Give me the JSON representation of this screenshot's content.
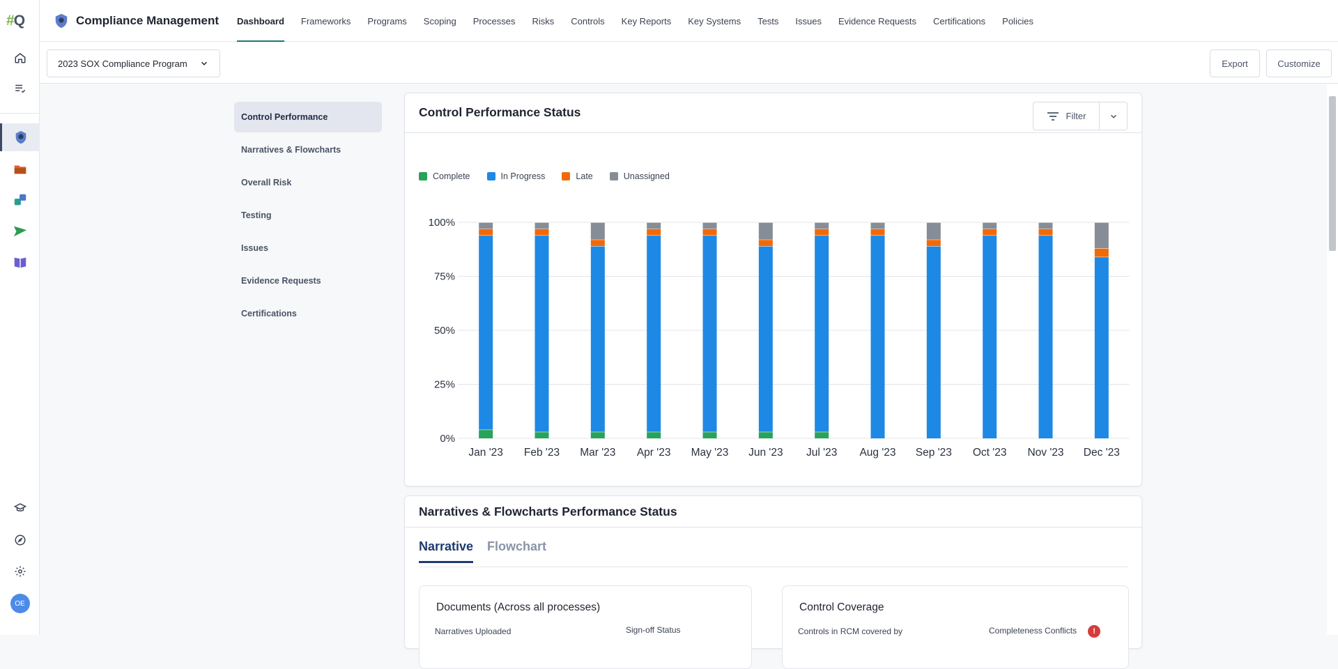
{
  "app": {
    "logo_hash": "#",
    "logo_q": "Q",
    "title": "Compliance Management",
    "avatar_initials": "OE"
  },
  "nav": [
    {
      "label": "Dashboard",
      "active": true
    },
    {
      "label": "Frameworks"
    },
    {
      "label": "Programs"
    },
    {
      "label": "Scoping"
    },
    {
      "label": "Processes"
    },
    {
      "label": "Risks"
    },
    {
      "label": "Controls"
    },
    {
      "label": "Key Reports"
    },
    {
      "label": "Key Systems"
    },
    {
      "label": "Tests"
    },
    {
      "label": "Issues"
    },
    {
      "label": "Evidence Requests"
    },
    {
      "label": "Certifications"
    },
    {
      "label": "Policies"
    }
  ],
  "toolbar": {
    "program": "2023 SOX Compliance Program",
    "export_label": "Export",
    "customize_label": "Customize"
  },
  "sidenav": [
    {
      "label": "Control Performance",
      "active": true
    },
    {
      "label": "Narratives & Flowcharts"
    },
    {
      "label": "Overall Risk"
    },
    {
      "label": "Testing"
    },
    {
      "label": "Issues"
    },
    {
      "label": "Evidence Requests"
    },
    {
      "label": "Certifications"
    }
  ],
  "control_card": {
    "title": "Control Performance Status",
    "filter_label": "Filter"
  },
  "chart_data": {
    "type": "bar",
    "stacked": true,
    "categories": [
      "Jan '23",
      "Feb '23",
      "Mar '23",
      "Apr '23",
      "May '23",
      "Jun '23",
      "Jul '23",
      "Aug '23",
      "Sep '23",
      "Oct '23",
      "Nov '23",
      "Dec '23"
    ],
    "series": [
      {
        "name": "Complete",
        "color": "#27a35a",
        "values": [
          4,
          3,
          3,
          3,
          3,
          3,
          3,
          0,
          0,
          0,
          0,
          0
        ]
      },
      {
        "name": "In Progress",
        "color": "#1e88e5",
        "values": [
          90,
          91,
          86,
          91,
          91,
          86,
          91,
          94,
          89,
          94,
          94,
          84
        ]
      },
      {
        "name": "Late",
        "color": "#f06a0a",
        "values": [
          3,
          3,
          3,
          3,
          3,
          3,
          3,
          3,
          3,
          3,
          3,
          4
        ]
      },
      {
        "name": "Unassigned",
        "color": "#878d96",
        "values": [
          3,
          3,
          8,
          3,
          3,
          8,
          3,
          3,
          8,
          3,
          3,
          12
        ]
      }
    ],
    "ylim": [
      0,
      100
    ],
    "yticks": [
      "0%",
      "25%",
      "50%",
      "75%",
      "100%"
    ],
    "grid": true,
    "legend": "top-left"
  },
  "narr_card": {
    "title": "Narratives & Flowcharts Performance Status",
    "tab_narrative": "Narrative",
    "tab_flowchart": "Flowchart",
    "docs_title": "Documents (Across all processes)",
    "narratives_uploaded": "Narratives Uploaded",
    "signoff_status": "Sign-off Status",
    "coverage_title": "Control Coverage",
    "controls_in_rcm": "Controls in RCM covered by",
    "completeness_conflicts": "Completeness Conflicts",
    "warn_symbol": "!"
  }
}
